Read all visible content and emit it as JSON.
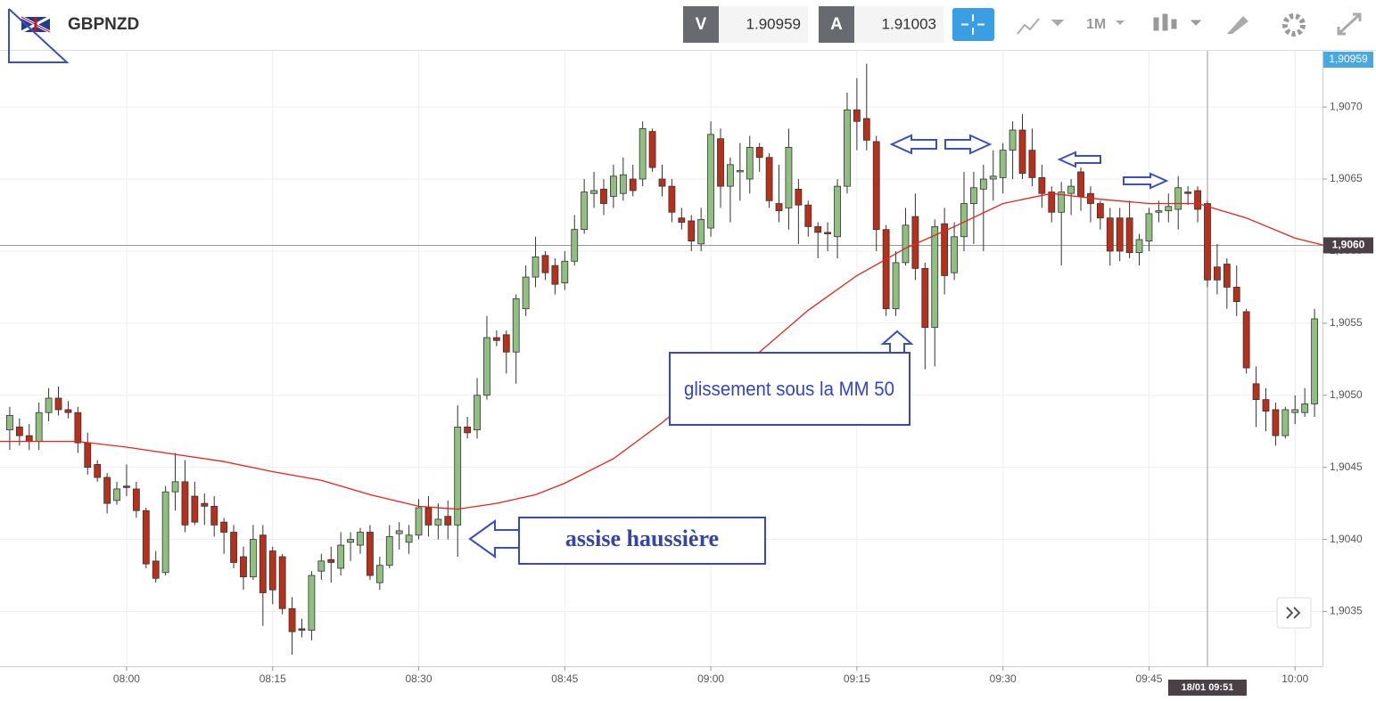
{
  "header": {
    "symbol": "GBPNZD",
    "bid_label": "V",
    "bid": 1.90959,
    "ask_label": "A",
    "ask": 1.91003,
    "timeframe": "1M"
  },
  "chart_data": {
    "type": "candlestick",
    "x": [
      "07:48",
      "07:49",
      "07:50",
      "07:51",
      "07:52",
      "07:53",
      "07:54",
      "07:55",
      "07:56",
      "07:57",
      "07:58",
      "07:59",
      "08:00",
      "08:01",
      "08:02",
      "08:03",
      "08:04",
      "08:05",
      "08:06",
      "08:07",
      "08:08",
      "08:09",
      "08:10",
      "08:11",
      "08:12",
      "08:13",
      "08:14",
      "08:15",
      "08:16",
      "08:17",
      "08:18",
      "08:19",
      "08:20",
      "08:21",
      "08:22",
      "08:23",
      "08:24",
      "08:25",
      "08:26",
      "08:27",
      "08:28",
      "08:29",
      "08:30",
      "08:31",
      "08:32",
      "08:33",
      "08:34",
      "08:35",
      "08:36",
      "08:37",
      "08:38",
      "08:39",
      "08:40",
      "08:41",
      "08:42",
      "08:43",
      "08:44",
      "08:45",
      "08:46",
      "08:47",
      "08:48",
      "08:49",
      "08:50",
      "08:51",
      "08:52",
      "08:53",
      "08:54",
      "08:55",
      "08:56",
      "08:57",
      "08:58",
      "08:59",
      "09:00",
      "09:01",
      "09:02",
      "09:03",
      "09:04",
      "09:05",
      "09:06",
      "09:07",
      "09:08",
      "09:09",
      "09:10",
      "09:11",
      "09:12",
      "09:13",
      "09:14",
      "09:15",
      "09:16",
      "09:17",
      "09:18",
      "09:19",
      "09:20",
      "09:21",
      "09:22",
      "09:23",
      "09:24",
      "09:25",
      "09:26",
      "09:27",
      "09:28",
      "09:29",
      "09:30",
      "09:31",
      "09:32",
      "09:33",
      "09:34",
      "09:35",
      "09:36",
      "09:37",
      "09:38",
      "09:39",
      "09:40",
      "09:41",
      "09:42",
      "09:43",
      "09:44",
      "09:45",
      "09:46",
      "09:47",
      "09:48",
      "09:49",
      "09:50",
      "09:51",
      "09:52",
      "09:53",
      "09:54",
      "09:55",
      "09:56",
      "09:57",
      "09:58",
      "09:59",
      "10:00",
      "10:01",
      "10:02"
    ],
    "open": [
      1.90476,
      1.90478,
      1.90472,
      1.90468,
      1.90488,
      1.90498,
      1.9049,
      1.90488,
      1.90467,
      1.90452,
      1.90443,
      1.90427,
      1.90437,
      1.90435,
      1.9042,
      1.90385,
      1.90377,
      1.90433,
      1.9044,
      1.9043,
      1.90425,
      1.90423,
      1.90412,
      1.90405,
      1.90388,
      1.90374,
      1.90403,
      1.90392,
      1.90388,
      1.90352,
      1.90338,
      1.90337,
      1.90378,
      1.90386,
      1.9038,
      1.90398,
      1.90396,
      1.90405,
      1.9037,
      1.90382,
      1.90404,
      1.90398,
      1.90403,
      1.90422,
      1.9041,
      1.90416,
      1.9041,
      1.90478,
      1.90476,
      1.905,
      1.9054,
      1.90542,
      1.9053,
      1.9056,
      1.90582,
      1.90597,
      1.9059,
      1.90578,
      1.90593,
      1.90615,
      1.9064,
      1.90643,
      1.90638,
      1.9064,
      1.9065,
      1.9065,
      1.90683,
      1.9065,
      1.90645,
      1.90623,
      1.90621,
      1.90605,
      1.90616,
      1.90678,
      1.90645,
      1.90655,
      1.9065,
      1.90672,
      1.90665,
      1.90633,
      1.9063,
      1.90643,
      1.90632,
      1.90617,
      1.90613,
      1.9061,
      1.90645,
      1.90698,
      1.90692,
      1.90676,
      1.90615,
      1.9056,
      1.90592,
      1.90624,
      1.90588,
      1.90547,
      1.90619,
      1.90585,
      1.9061,
      1.90633,
      1.90643,
      1.9065,
      1.90651,
      1.9067,
      1.90684,
      1.9067,
      1.90651,
      1.90641,
      1.90627,
      1.9064,
      1.90655,
      1.9064,
      1.90633,
      1.90623,
      1.90623,
      1.90623,
      1.90599,
      1.90607,
      1.90627,
      1.90628,
      1.90629,
      1.90641,
      1.90642,
      1.90633,
      1.90589,
      1.90591,
      1.90575,
      1.90558,
      1.90508,
      1.90497,
      1.9049,
      1.90472,
      1.90488,
      1.90488,
      1.90494
    ],
    "high": [
      1.90492,
      1.90484,
      1.9048,
      1.90495,
      1.90505,
      1.90506,
      1.90496,
      1.90492,
      1.90474,
      1.90455,
      1.90446,
      1.9044,
      1.90452,
      1.9044,
      1.90422,
      1.90392,
      1.90437,
      1.9046,
      1.90455,
      1.9044,
      1.90432,
      1.9043,
      1.90415,
      1.9041,
      1.90395,
      1.9041,
      1.9041,
      1.90395,
      1.9039,
      1.9036,
      1.90345,
      1.90378,
      1.9039,
      1.90395,
      1.90405,
      1.90405,
      1.90408,
      1.9041,
      1.90388,
      1.9041,
      1.90412,
      1.9041,
      1.90428,
      1.9043,
      1.90425,
      1.90427,
      1.90493,
      1.90485,
      1.90512,
      1.90555,
      1.90545,
      1.90545,
      1.9057,
      1.9059,
      1.9061,
      1.906,
      1.90595,
      1.906,
      1.90625,
      1.9065,
      1.90655,
      1.9065,
      1.9066,
      1.90665,
      1.9066,
      1.9069,
      1.90685,
      1.9066,
      1.9065,
      1.9063,
      1.90625,
      1.9063,
      1.9069,
      1.90685,
      1.90665,
      1.90675,
      1.9068,
      1.90675,
      1.90668,
      1.9066,
      1.90685,
      1.9065,
      1.90635,
      1.9062,
      1.9062,
      1.9065,
      1.9071,
      1.9072,
      1.9073,
      1.9068,
      1.90618,
      1.906,
      1.9063,
      1.9064,
      1.90592,
      1.90622,
      1.9063,
      1.9062,
      1.90655,
      1.90655,
      1.9066,
      1.9067,
      1.90675,
      1.9069,
      1.90695,
      1.90685,
      1.9066,
      1.90645,
      1.90648,
      1.9065,
      1.90658,
      1.90645,
      1.90635,
      1.9063,
      1.9063,
      1.90635,
      1.90612,
      1.9063,
      1.90635,
      1.9064,
      1.90652,
      1.90645,
      1.90645,
      1.90635,
      1.90605,
      1.90595,
      1.9059,
      1.9056,
      1.9052,
      1.90505,
      1.90495,
      1.90492,
      1.905,
      1.90505,
      1.9056
    ],
    "low": [
      1.90462,
      1.90465,
      1.90462,
      1.90462,
      1.90482,
      1.90486,
      1.90484,
      1.9046,
      1.90445,
      1.9044,
      1.90418,
      1.90424,
      1.9043,
      1.90415,
      1.9038,
      1.9037,
      1.90375,
      1.9042,
      1.90405,
      1.9041,
      1.9041,
      1.90402,
      1.9039,
      1.9038,
      1.90365,
      1.90372,
      1.9034,
      1.90355,
      1.90348,
      1.9032,
      1.90332,
      1.9033,
      1.90372,
      1.9037,
      1.90375,
      1.90385,
      1.9039,
      1.90372,
      1.90365,
      1.9038,
      1.90393,
      1.9039,
      1.904,
      1.90402,
      1.904,
      1.904,
      1.90388,
      1.9047,
      1.9047,
      1.90497,
      1.90534,
      1.90515,
      1.90508,
      1.90555,
      1.90575,
      1.9058,
      1.9057,
      1.90573,
      1.9059,
      1.90612,
      1.9063,
      1.90625,
      1.9063,
      1.90635,
      1.90638,
      1.90645,
      1.90655,
      1.90638,
      1.9062,
      1.90615,
      1.906,
      1.906,
      1.9061,
      1.9063,
      1.9062,
      1.90635,
      1.9064,
      1.90655,
      1.9063,
      1.9062,
      1.90615,
      1.90605,
      1.9061,
      1.90595,
      1.906,
      1.90595,
      1.9064,
      1.9067,
      1.9067,
      1.906,
      1.90555,
      1.90555,
      1.9059,
      1.9058,
      1.90518,
      1.9052,
      1.9057,
      1.9058,
      1.906,
      1.90605,
      1.906,
      1.90635,
      1.9064,
      1.9065,
      1.9065,
      1.90645,
      1.9063,
      1.9062,
      1.9059,
      1.90625,
      1.90628,
      1.9062,
      1.90615,
      1.9059,
      1.90593,
      1.90595,
      1.9059,
      1.906,
      1.9062,
      1.9062,
      1.90615,
      1.90632,
      1.9062,
      1.90575,
      1.9057,
      1.9056,
      1.90555,
      1.90515,
      1.90478,
      1.90475,
      1.90465,
      1.9047,
      1.9048,
      1.90485,
      1.90485
    ],
    "close": [
      1.90486,
      1.90472,
      1.90468,
      1.90488,
      1.90498,
      1.9049,
      1.90488,
      1.90467,
      1.9045,
      1.90443,
      1.90425,
      1.90435,
      1.90436,
      1.9042,
      1.90383,
      1.90373,
      1.90433,
      1.9044,
      1.9041,
      1.90412,
      1.90423,
      1.9041,
      1.90405,
      1.90384,
      1.90374,
      1.904,
      1.90363,
      1.90365,
      1.90352,
      1.90336,
      1.90337,
      1.90375,
      1.90385,
      1.90384,
      1.90396,
      1.904,
      1.90405,
      1.90375,
      1.90382,
      1.90402,
      1.90406,
      1.90403,
      1.90422,
      1.9041,
      1.90414,
      1.9041,
      1.90478,
      1.90474,
      1.905,
      1.9054,
      1.90538,
      1.9053,
      1.90567,
      1.90582,
      1.90596,
      1.90585,
      1.90577,
      1.90593,
      1.90615,
      1.90641,
      1.90642,
      1.90633,
      1.90652,
      1.90653,
      1.90642,
      1.90685,
      1.90658,
      1.90645,
      1.90627,
      1.9062,
      1.90607,
      1.90622,
      1.90681,
      1.90645,
      1.9066,
      1.90656,
      1.90672,
      1.90665,
      1.90635,
      1.90628,
      1.90672,
      1.90632,
      1.90617,
      1.90613,
      1.90612,
      1.90645,
      1.90698,
      1.9069,
      1.90677,
      1.90615,
      1.9056,
      1.90592,
      1.90618,
      1.90588,
      1.90547,
      1.90617,
      1.90583,
      1.9061,
      1.90633,
      1.90644,
      1.9065,
      1.90652,
      1.9067,
      1.90684,
      1.90654,
      1.90651,
      1.9064,
      1.90627,
      1.90641,
      1.90645,
      1.90638,
      1.90633,
      1.90623,
      1.906,
      1.906,
      1.90599,
      1.90608,
      1.90626,
      1.90628,
      1.90631,
      1.90644,
      1.9064,
      1.90629,
      1.9058,
      1.9058,
      1.90575,
      1.90565,
      1.90519,
      1.90497,
      1.90489,
      1.90472,
      1.9049,
      1.9049,
      1.90494,
      1.90553
    ],
    "up_color": "#8fc07f",
    "down_color": "#b8301a",
    "moving_average": {
      "color": "#e8231f",
      "x": [
        "07:47",
        "07:55",
        "08:00",
        "08:05",
        "08:10",
        "08:15",
        "08:20",
        "08:25",
        "08:30",
        "08:34",
        "08:38",
        "08:42",
        "08:45",
        "08:50",
        "08:55",
        "09:00",
        "09:05",
        "09:10",
        "09:15",
        "09:20",
        "09:25",
        "09:30",
        "09:35",
        "09:40",
        "09:45",
        "09:50",
        "09:55",
        "10:00",
        "10:03"
      ],
      "values": [
        1.90468,
        1.90468,
        1.90464,
        1.90459,
        1.90454,
        1.90447,
        1.90441,
        1.90431,
        1.90423,
        1.90421,
        1.90425,
        1.90431,
        1.90439,
        1.90456,
        1.90481,
        1.90509,
        1.9053,
        1.90559,
        1.90583,
        1.90602,
        1.90617,
        1.90633,
        1.9064,
        1.90636,
        1.90633,
        1.90633,
        1.90623,
        1.90609,
        1.90604
      ]
    },
    "xlim": [
      "07:47",
      "10:03"
    ],
    "xticks": [
      "08:00",
      "08:15",
      "08:30",
      "08:45",
      "09:00",
      "09:15",
      "09:30",
      "09:45",
      "10:00"
    ],
    "ylim": [
      1.90312,
      1.90739
    ],
    "yticks": [
      {
        "value": 1.9035,
        "label": "1,9035"
      },
      {
        "value": 1.904,
        "label": "1,9040"
      },
      {
        "value": 1.9045,
        "label": "1,9045"
      },
      {
        "value": 1.905,
        "label": "1,9050"
      },
      {
        "value": 1.9055,
        "label": "1,9055"
      },
      {
        "value": 1.906,
        "label": "1,9060"
      },
      {
        "value": 1.9065,
        "label": "1,9065"
      },
      {
        "value": 1.907,
        "label": "1,9070"
      }
    ],
    "grid": true,
    "last_price": {
      "value": 1.90959,
      "label": "1,90959"
    },
    "crosshair_y": {
      "value": 1.90604,
      "label": "1,9060"
    },
    "crosshair_x": {
      "value": "09:51",
      "label": "18/01 09:51"
    },
    "annotations": [
      "glissement sous la MM 50",
      "assise haussière"
    ]
  }
}
